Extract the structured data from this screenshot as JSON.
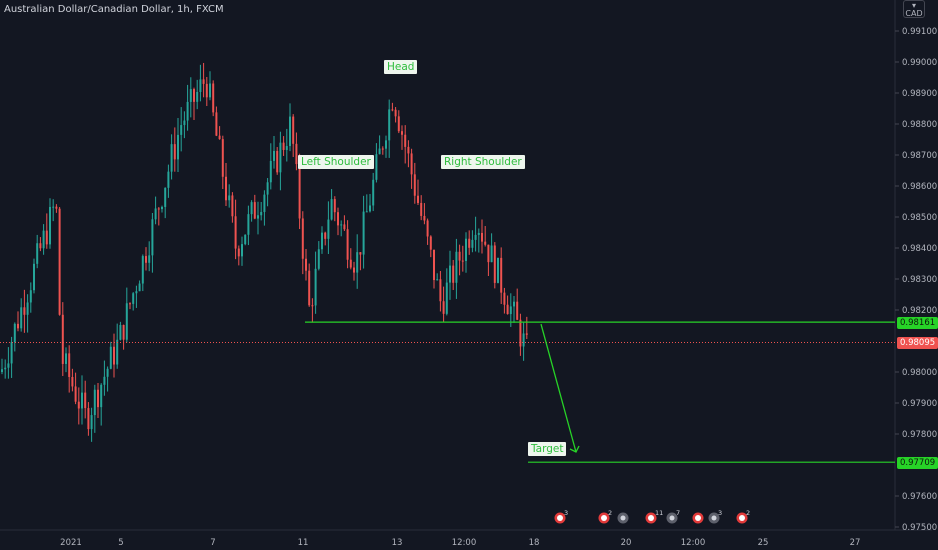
{
  "header": {
    "title": "Australian Dollar/Canadian Dollar, 1h, FXCM"
  },
  "currency_badge": {
    "line1": "▾",
    "line2": "CAD"
  },
  "annotations": {
    "head": "Head",
    "left_shoulder": "Left Shoulder",
    "right_shoulder": "Right Shoulder",
    "target": "Target"
  },
  "colors": {
    "background": "#131722",
    "up_candle": "#26a69a",
    "down_candle": "#ef5350",
    "neckline": "#27d327",
    "target_line": "#27d327",
    "current_price": "#ef5350",
    "event_icon": "#e23a3a"
  },
  "price_labels": {
    "neckline": "0.98161",
    "current": "0.98095",
    "target": "0.97709"
  },
  "event_markers": [
    {
      "kind": "flag",
      "count": "3"
    },
    {
      "kind": "flag",
      "count": "2"
    },
    {
      "kind": "gear",
      "count": ""
    },
    {
      "kind": "flag",
      "count": "11"
    },
    {
      "kind": "gear",
      "count": "7"
    },
    {
      "kind": "flag",
      "count": ""
    },
    {
      "kind": "gear",
      "count": "3"
    },
    {
      "kind": "flag",
      "count": "2"
    }
  ],
  "chart_data": {
    "type": "candlestick",
    "title": "Australian Dollar/Canadian Dollar, 1h, FXCM",
    "ylim": [
      0.975,
      0.992
    ],
    "y_ticks": [
      "0.99100",
      "0.99000",
      "0.98900",
      "0.98800",
      "0.98700",
      "0.98600",
      "0.98500",
      "0.98400",
      "0.98300",
      "0.98200",
      "0.98000",
      "0.97900",
      "0.97800",
      "0.97600",
      "0.97500"
    ],
    "y_tick_values": [
      0.991,
      0.99,
      0.989,
      0.988,
      0.987,
      0.986,
      0.985,
      0.984,
      0.983,
      0.982,
      0.98,
      0.979,
      0.978,
      0.976,
      0.975
    ],
    "x_ticks": [
      "2021",
      "5",
      "7",
      "11",
      "13",
      "12:00",
      "18",
      "20",
      "12:00",
      "25",
      "27"
    ],
    "neckline": 0.98161,
    "current_price": 0.98095,
    "target": 0.97709,
    "pattern": "Head and Shoulders",
    "price_path_keypoints": [
      {
        "x": "start",
        "price": 0.98
      },
      {
        "x": "2021",
        "price": 0.9805
      },
      {
        "x": "after 2021",
        "price": 0.9855
      },
      {
        "x": "before 5",
        "price": 0.9785
      },
      {
        "x": "5",
        "price": 0.981
      },
      {
        "x": "6",
        "price": 0.9845
      },
      {
        "x": "6.5",
        "price": 0.988
      },
      {
        "x": "7",
        "price": 0.9895
      },
      {
        "x": "8",
        "price": 0.984
      },
      {
        "x": "9",
        "price": 0.986
      },
      {
        "x": "10",
        "price": 0.988
      },
      {
        "x": "11",
        "price": 0.982
      },
      {
        "x": "left shoulder",
        "price": 0.9855
      },
      {
        "x": "12",
        "price": 0.9835
      },
      {
        "x": "13 head",
        "price": 0.989
      },
      {
        "x": "13.5",
        "price": 0.9865
      },
      {
        "x": "12:00",
        "price": 0.9822
      },
      {
        "x": "right shoulder",
        "price": 0.985
      },
      {
        "x": "18",
        "price": 0.9805
      }
    ]
  }
}
